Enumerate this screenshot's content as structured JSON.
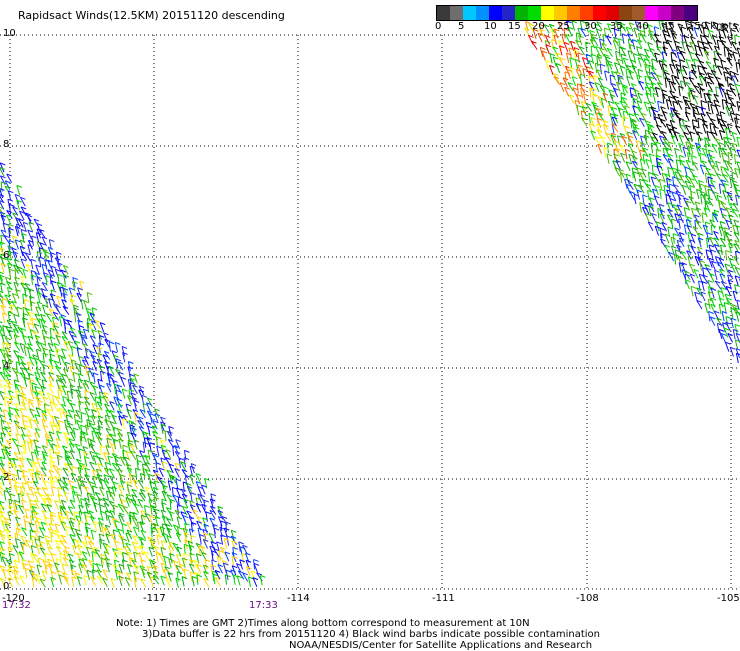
{
  "title": "Rapidsact Winds(12.5KM) 20151120 descending",
  "color_scale": {
    "colors": [
      "#3a3a3a",
      "#6e6e6e",
      "#00c8ff",
      "#0090ff",
      "#0000ff",
      "#2424c8",
      "#00b400",
      "#00dc00",
      "#ffff00",
      "#ffc800",
      "#ff8000",
      "#ff4000",
      "#ff0000",
      "#e00000",
      "#8b4513",
      "#a05a2c",
      "#ff00ff",
      "#c800c8",
      "#800080",
      "#4b0082"
    ],
    "labels": [
      "0",
      "5",
      "10",
      "15",
      "20",
      "25",
      "30",
      "35",
      "40",
      "45",
      ">50 knots"
    ]
  },
  "y_ticks": [
    "10",
    "8",
    "6",
    "4",
    "2",
    "0"
  ],
  "x_ticks": [
    "-120",
    "-117",
    "-114",
    "-111",
    "-108",
    "-105"
  ],
  "times": [
    "17:32",
    "17:33"
  ],
  "notes": [
    "Note: 1) Times are GMT 2)Times along bottom correspond to measurement at 10N",
    "3)Data buffer is 22 hrs from 20151120 4) Black wind barbs indicate possible contamination",
    "NOAA/NESDIS/Center for Satellite Applications and Research"
  ]
}
